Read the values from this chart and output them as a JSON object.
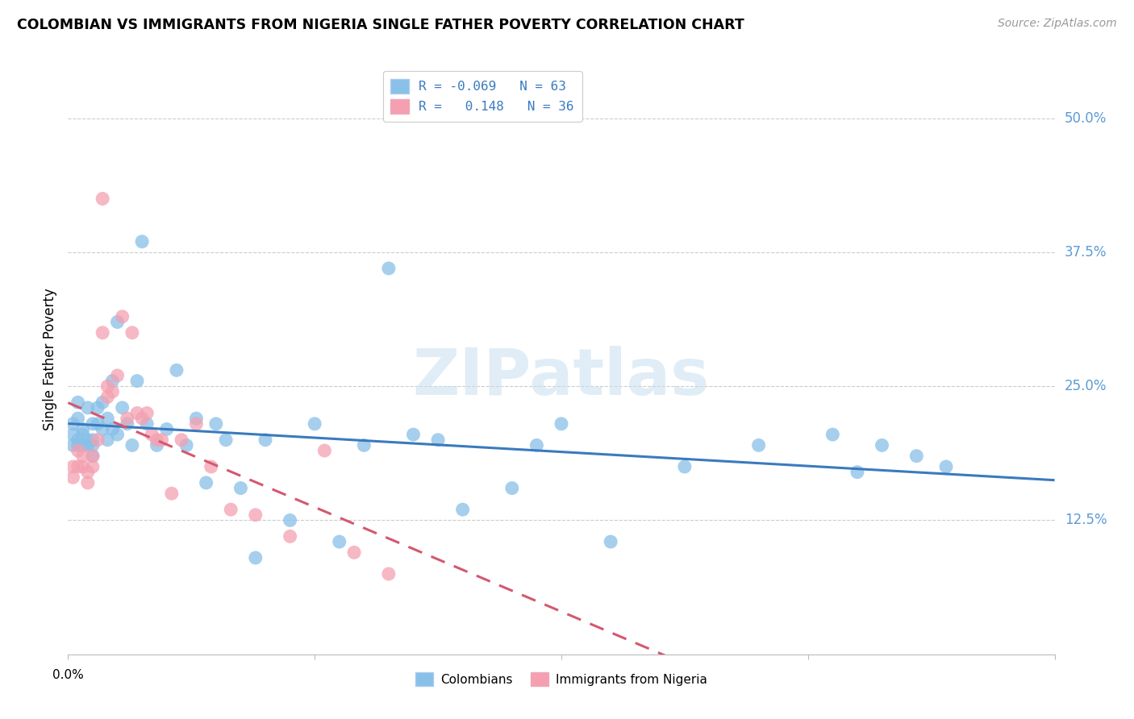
{
  "title": "COLOMBIAN VS IMMIGRANTS FROM NIGERIA SINGLE FATHER POVERTY CORRELATION CHART",
  "source": "Source: ZipAtlas.com",
  "ylabel": "Single Father Poverty",
  "ytick_labels": [
    "50.0%",
    "37.5%",
    "25.0%",
    "12.5%"
  ],
  "ytick_values": [
    0.5,
    0.375,
    0.25,
    0.125
  ],
  "xlim": [
    0.0,
    0.2
  ],
  "ylim": [
    0.0,
    0.55
  ],
  "legend_blue_label": "R = -0.069   N = 63",
  "legend_pink_label": "R =   0.148   N = 36",
  "colombians_label": "Colombians",
  "nigeria_label": "Immigrants from Nigeria",
  "blue_color": "#88c0e8",
  "pink_color": "#f4a0b0",
  "blue_line_color": "#3a7abf",
  "pink_line_color": "#d45870",
  "watermark": "ZIPatlas",
  "colombians_x": [
    0.001,
    0.001,
    0.001,
    0.002,
    0.002,
    0.002,
    0.002,
    0.003,
    0.003,
    0.003,
    0.004,
    0.004,
    0.004,
    0.005,
    0.005,
    0.005,
    0.005,
    0.006,
    0.006,
    0.007,
    0.007,
    0.008,
    0.008,
    0.009,
    0.009,
    0.01,
    0.01,
    0.011,
    0.012,
    0.013,
    0.014,
    0.015,
    0.016,
    0.018,
    0.02,
    0.022,
    0.024,
    0.026,
    0.028,
    0.03,
    0.032,
    0.035,
    0.038,
    0.04,
    0.045,
    0.05,
    0.055,
    0.06,
    0.065,
    0.07,
    0.075,
    0.08,
    0.09,
    0.095,
    0.1,
    0.11,
    0.125,
    0.14,
    0.155,
    0.16,
    0.165,
    0.172,
    0.178
  ],
  "colombians_y": [
    0.205,
    0.195,
    0.215,
    0.22,
    0.235,
    0.2,
    0.195,
    0.21,
    0.195,
    0.205,
    0.23,
    0.2,
    0.195,
    0.215,
    0.195,
    0.185,
    0.2,
    0.23,
    0.215,
    0.235,
    0.21,
    0.22,
    0.2,
    0.255,
    0.21,
    0.31,
    0.205,
    0.23,
    0.215,
    0.195,
    0.255,
    0.385,
    0.215,
    0.195,
    0.21,
    0.265,
    0.195,
    0.22,
    0.16,
    0.215,
    0.2,
    0.155,
    0.09,
    0.2,
    0.125,
    0.215,
    0.105,
    0.195,
    0.36,
    0.205,
    0.2,
    0.135,
    0.155,
    0.195,
    0.215,
    0.105,
    0.175,
    0.195,
    0.205,
    0.17,
    0.195,
    0.185,
    0.175
  ],
  "nigeria_x": [
    0.001,
    0.001,
    0.002,
    0.002,
    0.003,
    0.003,
    0.004,
    0.004,
    0.005,
    0.005,
    0.006,
    0.007,
    0.007,
    0.008,
    0.008,
    0.009,
    0.01,
    0.011,
    0.012,
    0.013,
    0.014,
    0.015,
    0.016,
    0.017,
    0.018,
    0.019,
    0.021,
    0.023,
    0.026,
    0.029,
    0.033,
    0.038,
    0.045,
    0.052,
    0.058,
    0.065
  ],
  "nigeria_y": [
    0.175,
    0.165,
    0.19,
    0.175,
    0.185,
    0.175,
    0.17,
    0.16,
    0.185,
    0.175,
    0.2,
    0.425,
    0.3,
    0.25,
    0.24,
    0.245,
    0.26,
    0.315,
    0.22,
    0.3,
    0.225,
    0.22,
    0.225,
    0.205,
    0.2,
    0.2,
    0.15,
    0.2,
    0.215,
    0.175,
    0.135,
    0.13,
    0.11,
    0.19,
    0.095,
    0.075
  ]
}
